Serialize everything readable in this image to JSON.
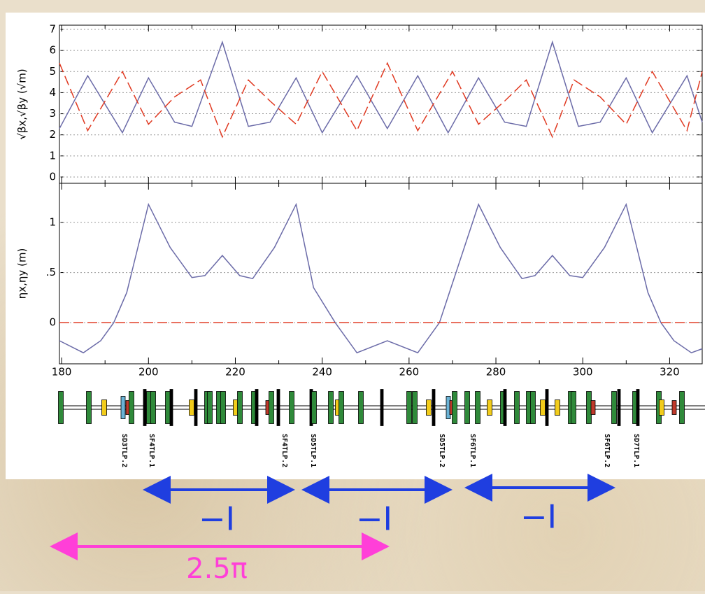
{
  "chart_data": [
    {
      "type": "line",
      "y_label": "√βx,√βy (√m)",
      "xlim": [
        179.5,
        327.5
      ],
      "xticks": [
        180,
        200,
        220,
        240,
        260,
        280,
        300,
        320
      ],
      "show_xtick_labels": false,
      "ylim": [
        -0.3,
        7.2
      ],
      "yticks": [
        0,
        1,
        2,
        3,
        4,
        5,
        6,
        7
      ],
      "grid": true,
      "series": [
        {
          "color": "#6b6ba8",
          "style": "solid",
          "x": [
            179.5,
            186,
            194,
            200,
            206,
            210,
            217,
            223,
            228,
            234,
            240,
            248,
            255,
            262,
            269,
            276,
            282,
            287,
            293,
            299,
            304,
            310,
            316,
            324,
            327.5
          ],
          "values": [
            2.3,
            4.8,
            2.1,
            4.7,
            2.6,
            2.4,
            6.4,
            2.4,
            2.6,
            4.7,
            2.1,
            4.8,
            2.3,
            4.8,
            2.1,
            4.7,
            2.6,
            2.4,
            6.4,
            2.4,
            2.6,
            4.7,
            2.1,
            4.8,
            2.6
          ]
        },
        {
          "color": "#e03a22",
          "style": "dashed",
          "x": [
            179.5,
            186,
            194,
            200,
            206,
            212,
            217,
            223,
            228,
            234,
            240,
            248,
            255,
            262,
            270,
            276,
            282,
            287,
            293,
            298,
            304,
            310,
            316,
            324,
            327.5
          ],
          "values": [
            5.4,
            2.2,
            5.0,
            2.5,
            3.8,
            4.6,
            1.9,
            4.6,
            3.6,
            2.5,
            5.0,
            2.2,
            5.4,
            2.2,
            5.0,
            2.5,
            3.6,
            4.6,
            1.9,
            4.6,
            3.8,
            2.5,
            5.0,
            2.2,
            5.0
          ]
        }
      ]
    },
    {
      "type": "line",
      "y_label": "ηx,ηy (m)",
      "xlim": [
        179.5,
        327.5
      ],
      "xticks": [
        180,
        200,
        220,
        240,
        260,
        280,
        300,
        320
      ],
      "show_xtick_labels": true,
      "ylim": [
        -0.41,
        1.39
      ],
      "yticks": [
        0,
        {
          "value": 0.5,
          "label": ".5"
        },
        1
      ],
      "grid": true,
      "series": [
        {
          "color": "#6b6ba8",
          "style": "solid",
          "x": [
            179.5,
            185,
            189,
            192,
            195,
            200,
            205,
            210,
            213,
            217,
            221,
            224,
            229,
            234,
            238,
            243,
            248,
            255,
            262,
            267,
            276,
            281,
            286,
            289,
            293,
            297,
            300,
            305,
            310,
            315,
            318,
            321,
            325,
            327.5
          ],
          "values": [
            -0.18,
            -0.3,
            -0.18,
            0.0,
            0.3,
            1.18,
            0.75,
            0.45,
            0.47,
            0.67,
            0.47,
            0.44,
            0.75,
            1.18,
            0.35,
            0.0,
            -0.3,
            -0.18,
            -0.3,
            0.0,
            1.18,
            0.75,
            0.44,
            0.47,
            0.67,
            0.47,
            0.45,
            0.75,
            1.18,
            0.3,
            0.0,
            -0.18,
            -0.3,
            -0.26
          ]
        },
        {
          "color": "#e03a22",
          "style": "dashed",
          "x": [
            179.5,
            327.5
          ],
          "values": [
            0,
            0
          ]
        }
      ]
    }
  ],
  "lattice": {
    "labels": [
      "SD3TLP.2",
      "SF4TLP.1",
      "SF4TLP.2",
      "SD5TLP.1",
      "SD5TLP.2",
      "SF6TLP.1",
      "SF6TLP.2",
      "SD7TLP.1"
    ]
  },
  "annotations": {
    "minus_identity": [
      "−I",
      "−I",
      "−I"
    ],
    "phase_advance": "2.5π"
  }
}
